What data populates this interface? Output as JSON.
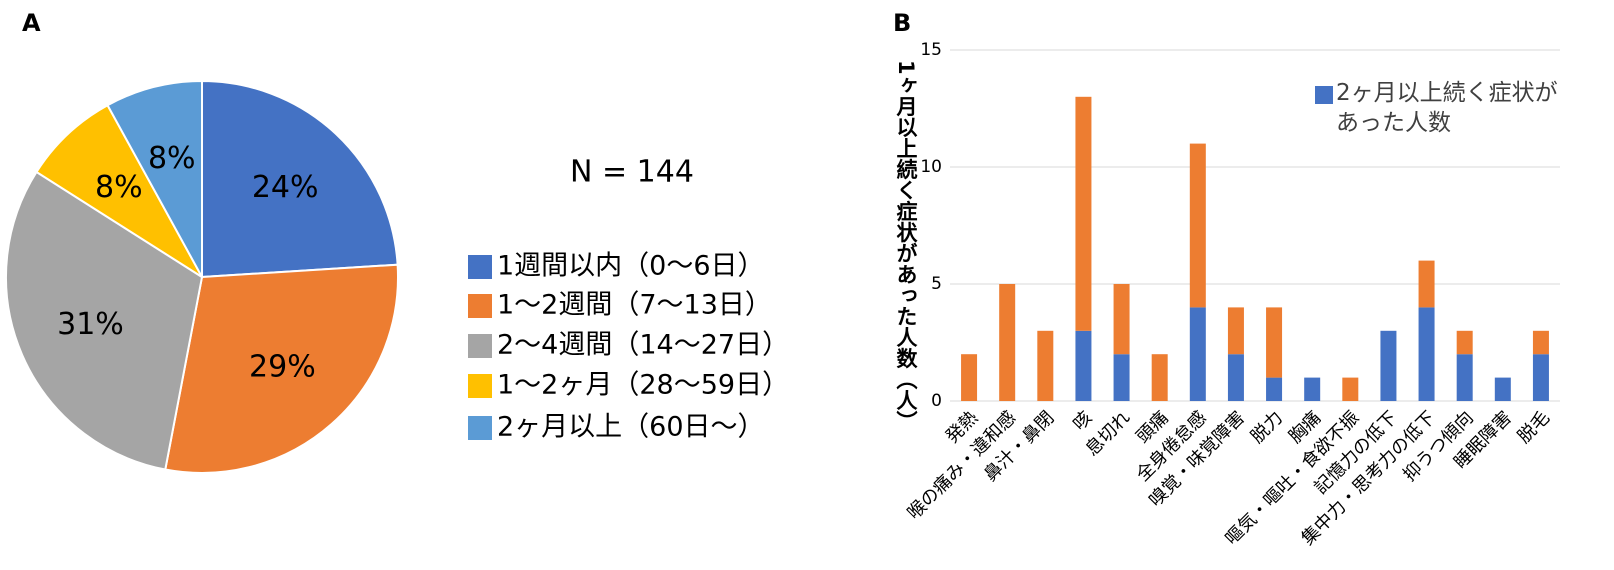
{
  "chart_data": [
    {
      "type": "pie",
      "panel_label": "A",
      "annotation": "N = 144",
      "categories": [
        "1週間以内（0〜6日）",
        "1〜2週間（7〜13日）",
        "2〜4週間（14〜27日）",
        "1〜2ヶ月（28〜59日）",
        "2ヶ月以上（60日〜）"
      ],
      "values": [
        24,
        29,
        31,
        8,
        8
      ],
      "value_labels": [
        "24%",
        "29%",
        "31%",
        "8%",
        "8%"
      ],
      "colors": [
        "#4472c4",
        "#ed7d31",
        "#a5a5a5",
        "#ffc000",
        "#5b9bd5"
      ]
    },
    {
      "type": "bar",
      "stacked": true,
      "panel_label": "B",
      "y_label": "1ヶ月以上続く症状があった人数（人）",
      "categories": [
        "発熱",
        "喉の痛み・違和感",
        "鼻汁・鼻閉",
        "咳",
        "息切れ",
        "頭痛",
        "全身倦怠感",
        "嗅覚・味覚障害",
        "脱力",
        "胸痛",
        "嘔気・嘔吐・食欲不振",
        "記憶力の低下",
        "集中力・思考力の低下",
        "抑うつ傾向",
        "睡眠障害",
        "脱毛"
      ],
      "series": [
        {
          "name": "2ヶ月以上続く症状があった人数",
          "color": "#4472c4",
          "values": [
            0,
            0,
            0,
            3,
            2,
            0,
            4,
            2,
            1,
            1,
            0,
            3,
            4,
            2,
            1,
            2
          ]
        },
        {
          "color": "#ed7d31",
          "values": [
            2,
            5,
            3,
            10,
            3,
            2,
            7,
            2,
            3,
            0,
            1,
            0,
            2,
            1,
            0,
            1
          ]
        }
      ],
      "ylim": [
        0,
        15
      ],
      "yticks": [
        0,
        5,
        10,
        15
      ],
      "grid": true
    }
  ]
}
